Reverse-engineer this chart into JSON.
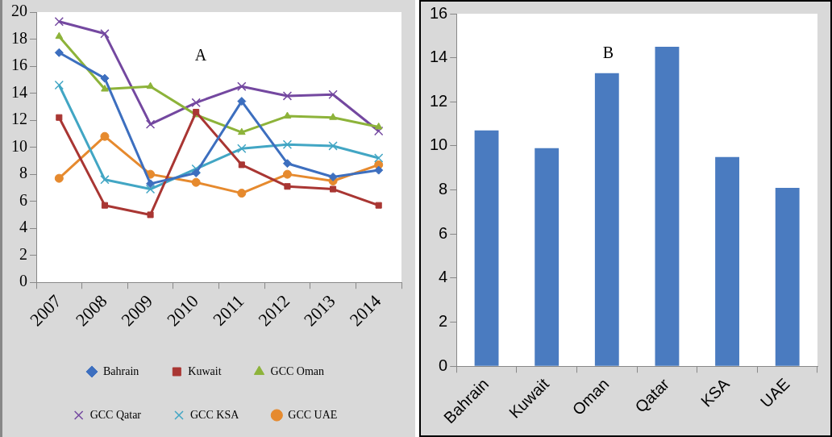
{
  "chart_data": [
    {
      "type": "line",
      "annotations": [
        "A"
      ],
      "categories": [
        "2007",
        "2008",
        "2009",
        "2010",
        "2011",
        "2012",
        "2013",
        "2014"
      ],
      "series": [
        {
          "name": "Bahrain",
          "color": "#3d6fbf",
          "marker": "diamond",
          "values": [
            17.0,
            15.1,
            7.3,
            8.1,
            13.4,
            8.8,
            7.8,
            8.3
          ]
        },
        {
          "name": "Kuwait",
          "color": "#a93633",
          "marker": "square",
          "values": [
            12.2,
            5.7,
            5.0,
            12.6,
            8.7,
            7.1,
            6.9,
            5.7
          ]
        },
        {
          "name": "GCC Oman",
          "color": "#8db33a",
          "marker": "triangle",
          "values": [
            18.2,
            14.3,
            14.5,
            12.4,
            11.1,
            12.3,
            12.2,
            11.5
          ]
        },
        {
          "name": "GCC Qatar",
          "color": "#7448a0",
          "marker": "cross",
          "values": [
            19.3,
            18.4,
            11.7,
            13.3,
            14.5,
            13.8,
            13.9,
            11.2
          ]
        },
        {
          "name": "GCC KSA",
          "color": "#42a6c4",
          "marker": "cross",
          "values": [
            14.6,
            7.6,
            6.9,
            8.4,
            9.9,
            10.2,
            10.1,
            9.2
          ]
        },
        {
          "name": "GCC UAE",
          "color": "#e68a2e",
          "marker": "circle",
          "values": [
            7.7,
            10.8,
            8.0,
            7.4,
            6.6,
            8.0,
            7.5,
            8.7
          ]
        }
      ],
      "ylim": [
        0,
        20
      ],
      "yticks": [
        0,
        2,
        4,
        6,
        8,
        10,
        12,
        14,
        16,
        18,
        20
      ],
      "grid": false,
      "legend": "bottom"
    },
    {
      "type": "bar",
      "annotations": [
        "B"
      ],
      "categories": [
        "Bahrain",
        "Kuwait",
        "Oman",
        "Qatar",
        "KSA",
        "UAE"
      ],
      "values": [
        10.7,
        9.9,
        13.3,
        14.5,
        9.5,
        8.1
      ],
      "color": "#4a7bc0",
      "ylim": [
        0,
        16
      ],
      "yticks": [
        0,
        2,
        4,
        6,
        8,
        10,
        12,
        14,
        16
      ],
      "grid": false,
      "legend": false
    }
  ]
}
